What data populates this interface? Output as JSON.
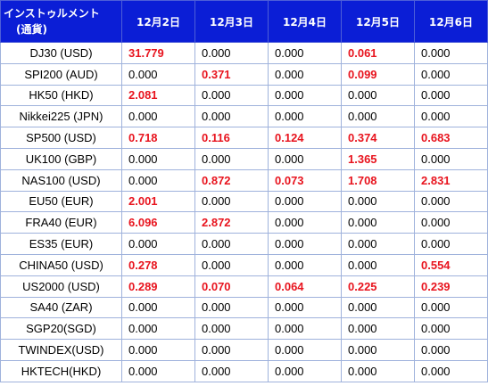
{
  "header": {
    "instrument_line1": "インストゥルメント",
    "instrument_line2": "(通貨)",
    "dates": [
      "12月2日",
      "12月3日",
      "12月4日",
      "12月5日",
      "12月6日"
    ]
  },
  "rows": [
    {
      "name": "DJ30 (USD)",
      "values": [
        "31.779",
        "0.000",
        "0.000",
        "0.061",
        "0.000"
      ],
      "highlight": [
        true,
        false,
        false,
        true,
        false
      ]
    },
    {
      "name": "SPI200 (AUD)",
      "values": [
        "0.000",
        "0.371",
        "0.000",
        "0.099",
        "0.000"
      ],
      "highlight": [
        false,
        true,
        false,
        true,
        false
      ]
    },
    {
      "name": "HK50 (HKD)",
      "values": [
        "2.081",
        "0.000",
        "0.000",
        "0.000",
        "0.000"
      ],
      "highlight": [
        true,
        false,
        false,
        false,
        false
      ]
    },
    {
      "name": "Nikkei225 (JPN)",
      "values": [
        "0.000",
        "0.000",
        "0.000",
        "0.000",
        "0.000"
      ],
      "highlight": [
        false,
        false,
        false,
        false,
        false
      ]
    },
    {
      "name": "SP500 (USD)",
      "values": [
        "0.718",
        "0.116",
        "0.124",
        "0.374",
        "0.683"
      ],
      "highlight": [
        true,
        true,
        true,
        true,
        true
      ]
    },
    {
      "name": "UK100 (GBP)",
      "values": [
        "0.000",
        "0.000",
        "0.000",
        "1.365",
        "0.000"
      ],
      "highlight": [
        false,
        false,
        false,
        true,
        false
      ]
    },
    {
      "name": "NAS100 (USD)",
      "values": [
        "0.000",
        "0.872",
        "0.073",
        "1.708",
        "2.831"
      ],
      "highlight": [
        false,
        true,
        true,
        true,
        true
      ]
    },
    {
      "name": "EU50 (EUR)",
      "values": [
        "2.001",
        "0.000",
        "0.000",
        "0.000",
        "0.000"
      ],
      "highlight": [
        true,
        false,
        false,
        false,
        false
      ]
    },
    {
      "name": "FRA40 (EUR)",
      "values": [
        "6.096",
        "2.872",
        "0.000",
        "0.000",
        "0.000"
      ],
      "highlight": [
        true,
        true,
        false,
        false,
        false
      ]
    },
    {
      "name": "ES35 (EUR)",
      "values": [
        "0.000",
        "0.000",
        "0.000",
        "0.000",
        "0.000"
      ],
      "highlight": [
        false,
        false,
        false,
        false,
        false
      ]
    },
    {
      "name": "CHINA50 (USD)",
      "values": [
        "0.278",
        "0.000",
        "0.000",
        "0.000",
        "0.554"
      ],
      "highlight": [
        true,
        false,
        false,
        false,
        true
      ]
    },
    {
      "name": "US2000 (USD)",
      "values": [
        "0.289",
        "0.070",
        "0.064",
        "0.225",
        "0.239"
      ],
      "highlight": [
        true,
        true,
        true,
        true,
        true
      ]
    },
    {
      "name": "SA40 (ZAR)",
      "values": [
        "0.000",
        "0.000",
        "0.000",
        "0.000",
        "0.000"
      ],
      "highlight": [
        false,
        false,
        false,
        false,
        false
      ]
    },
    {
      "name": "SGP20(SGD)",
      "values": [
        "0.000",
        "0.000",
        "0.000",
        "0.000",
        "0.000"
      ],
      "highlight": [
        false,
        false,
        false,
        false,
        false
      ]
    },
    {
      "name": "TWINDEX(USD)",
      "values": [
        "0.000",
        "0.000",
        "0.000",
        "0.000",
        "0.000"
      ],
      "highlight": [
        false,
        false,
        false,
        false,
        false
      ]
    },
    {
      "name": "HKTECH(HKD)",
      "values": [
        "0.000",
        "0.000",
        "0.000",
        "0.000",
        "0.000"
      ],
      "highlight": [
        false,
        false,
        false,
        false,
        false
      ]
    }
  ],
  "colors": {
    "header_bg": "#0b1ed6",
    "header_text": "#ffffff",
    "highlight_text": "#e8141e",
    "normal_text": "#000000",
    "grid": "#9fb2dc"
  }
}
